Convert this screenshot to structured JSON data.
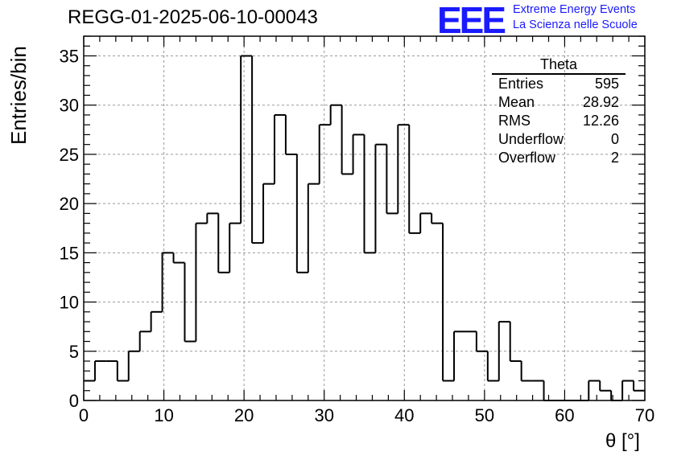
{
  "title": "REGG-01-2025-06-10-00043",
  "logo": {
    "mark": "EEE",
    "line1": "Extreme Energy Events",
    "line2": "La Scienza nelle Scuole"
  },
  "stats": {
    "name": "Theta",
    "rows": [
      {
        "label": "Entries",
        "value": "595"
      },
      {
        "label": "Mean",
        "value": "28.92"
      },
      {
        "label": "RMS",
        "value": "12.26"
      },
      {
        "label": "Underflow",
        "value": "0"
      },
      {
        "label": "Overflow",
        "value": "2"
      }
    ]
  },
  "colors": {
    "accent": "#1a1aff",
    "line": "#000000",
    "grid": "#999999"
  },
  "chart_data": {
    "type": "bar",
    "title": "REGG-01-2025-06-10-00043",
    "xlabel": "θ [°]",
    "ylabel": "Entries/bin",
    "xlim": [
      0,
      70
    ],
    "ylim": [
      0,
      37
    ],
    "grid": true,
    "bin_edges_start": 0,
    "bin_width": 1.4,
    "values": [
      2,
      4,
      4,
      2,
      5,
      7,
      9,
      15,
      14,
      6,
      18,
      19,
      13,
      18,
      35,
      16,
      22,
      29,
      25,
      13,
      22,
      28,
      30,
      23,
      27,
      15,
      26,
      19,
      28,
      17,
      19,
      18,
      2,
      7,
      7,
      5,
      2,
      8,
      4,
      2,
      2,
      0,
      0,
      0,
      0,
      2,
      1,
      0,
      2,
      1
    ],
    "x_ticks": [
      0,
      10,
      20,
      30,
      40,
      50,
      60,
      70
    ],
    "y_ticks": [
      0,
      5,
      10,
      15,
      20,
      25,
      30,
      35
    ]
  }
}
